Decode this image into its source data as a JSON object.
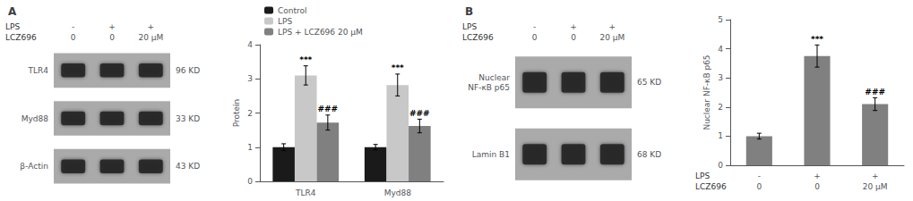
{
  "chart_data": [
    {
      "type": "blot",
      "title": "A",
      "rows": [
        "TLR4",
        "Myd88",
        "β-Actin"
      ],
      "kd": [
        "96 KD",
        "33 KD",
        "43 KD"
      ],
      "lanes": [
        {
          "label": "LPS",
          "values": [
            "-",
            "+",
            "+"
          ]
        },
        {
          "label": "LCZ696",
          "values": [
            "0",
            "0",
            "20 μM"
          ]
        }
      ],
      "color": "#aaaaaa"
    },
    {
      "type": "bar",
      "categories": [
        "TLR4",
        "Myd88"
      ],
      "ylabel": "Protein",
      "ylim": [
        0,
        4
      ],
      "yticks": [
        0,
        1,
        2,
        3,
        4
      ],
      "grid": false,
      "legend": "upper left",
      "series": [
        {
          "name": "Control",
          "color": "#1a1a1a",
          "values": [
            1.0,
            1.0
          ],
          "errors": [
            0.1,
            0.08
          ]
        },
        {
          "name": "LPS",
          "color": "#c8c8c8",
          "values": [
            3.1,
            2.82
          ],
          "errors": [
            0.28,
            0.32
          ],
          "annotations": [
            "***",
            "***"
          ]
        },
        {
          "name": "LPS + LCZ696 20 μM",
          "color": "#808080",
          "values": [
            1.72,
            1.62
          ],
          "errors": [
            0.22,
            0.2
          ],
          "annotations": [
            "###",
            "###"
          ]
        }
      ]
    },
    {
      "type": "blot",
      "title": "B",
      "rows": [
        "Nuclear\nNF-κB p65",
        "Lamin B1"
      ],
      "kd": [
        "65 KD",
        "68 KD"
      ],
      "lanes": [
        {
          "label": "LPS",
          "values": [
            "-",
            "+",
            "+"
          ]
        },
        {
          "label": "LCZ696",
          "values": [
            "0",
            "0",
            "20 μM"
          ]
        }
      ],
      "color": "#aaaaaa"
    },
    {
      "type": "bar",
      "x_rows": [
        {
          "label": "LPS",
          "values": [
            "-",
            "+",
            "+"
          ]
        },
        {
          "label": "LCZ696",
          "values": [
            "0",
            "0",
            "20 μM"
          ]
        }
      ],
      "ylabel": "Nuclear NF-κB p65",
      "ylim": [
        0,
        5
      ],
      "yticks": [
        0,
        1,
        2,
        3,
        4,
        5
      ],
      "grid": false,
      "color": "#808080",
      "values": [
        1.0,
        3.75,
        2.1
      ],
      "errors": [
        0.1,
        0.38,
        0.22
      ],
      "annotations": [
        null,
        "***",
        "###"
      ]
    }
  ]
}
